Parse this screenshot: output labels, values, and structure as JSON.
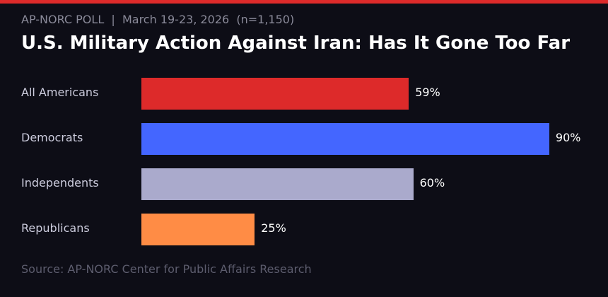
{
  "header": {
    "subtitle": "AP-NORC POLL  |  March 19-23, 2026  (n=1,150)",
    "title": "U.S. Military Action Against Iran: Has It Gone Too Far"
  },
  "chart_data": {
    "type": "bar",
    "orientation": "horizontal",
    "title": "U.S. Military Action Against Iran: Has It Gone Too Far",
    "categories": [
      "All Americans",
      "Democrats",
      "Independents",
      "Republicans"
    ],
    "values": [
      59,
      90,
      60,
      25
    ],
    "data_labels": [
      "59%",
      "90%",
      "60%",
      "25%"
    ],
    "colors": [
      "#dd2a2a",
      "#4466ff",
      "#aaaacc",
      "#ff8c45"
    ],
    "xlim": [
      0,
      100
    ],
    "grid": false
  },
  "source": "Source: AP-NORC Center for Public Affairs Research",
  "colors": {
    "accent": "#dd2a2a",
    "background": "#0d0d16"
  }
}
